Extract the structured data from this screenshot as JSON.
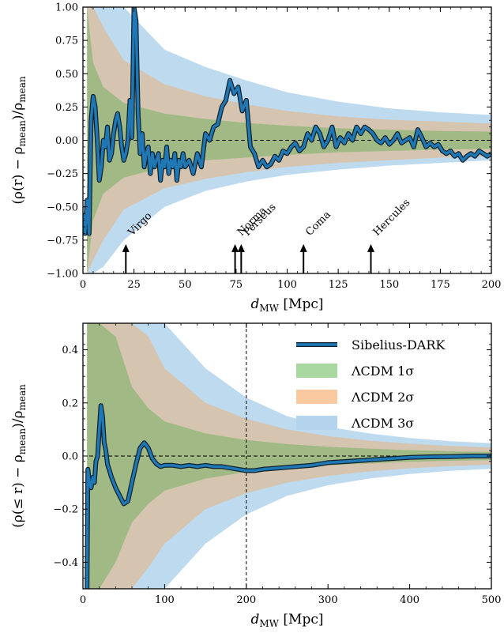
{
  "chart_data": [
    {
      "type": "area",
      "xlabel_main": "d",
      "xlabel_sub": "MW",
      "xlabel_unit": "[Mpc]",
      "ylabel": "(ρ(r) − ρmean)/ρmean",
      "ylabel_parts": [
        "(ρ(r) − ρ",
        "mean",
        ")/ρ",
        "mean"
      ],
      "xlim": [
        0,
        200
      ],
      "ylim": [
        -1.0,
        1.0
      ],
      "xticks": [
        0,
        25,
        50,
        75,
        100,
        125,
        150,
        175,
        200
      ],
      "xtick_labels": [
        "0",
        "25",
        "50",
        "75",
        "100",
        "125",
        "150",
        "175",
        "200"
      ],
      "yticks": [
        -1.0,
        -0.75,
        -0.5,
        -0.25,
        0.0,
        0.25,
        0.5,
        0.75,
        1.0
      ],
      "ytick_labels": [
        "−1.00",
        "−0.75",
        "−0.50",
        "−0.25",
        "0.00",
        "0.25",
        "0.50",
        "0.75",
        "1.00"
      ],
      "reference_line_y": 0,
      "bands_r": [
        2,
        5,
        10,
        20,
        40,
        60,
        80,
        100,
        125,
        150,
        175,
        200
      ],
      "band_1sigma": [
        1.0,
        0.58,
        0.4,
        0.28,
        0.2,
        0.16,
        0.13,
        0.11,
        0.09,
        0.08,
        0.07,
        0.065
      ],
      "band_2sigma": [
        1.0,
        1.0,
        0.85,
        0.6,
        0.42,
        0.33,
        0.27,
        0.22,
        0.18,
        0.155,
        0.14,
        0.125
      ],
      "band_3sigma": [
        1.0,
        1.0,
        1.0,
        1.0,
        0.68,
        0.55,
        0.45,
        0.36,
        0.29,
        0.24,
        0.21,
        0.19
      ],
      "band_lower_1sigma": [
        -1.0,
        -0.6,
        -0.4,
        -0.28,
        -0.2,
        -0.15,
        -0.13,
        -0.11,
        -0.09,
        -0.08,
        -0.07,
        -0.065
      ],
      "band_lower_2sigma": [
        -1.0,
        -0.9,
        -0.75,
        -0.52,
        -0.36,
        -0.29,
        -0.24,
        -0.2,
        -0.17,
        -0.15,
        -0.13,
        -0.12
      ],
      "band_lower_3sigma": [
        -1.0,
        -1.0,
        -0.95,
        -0.75,
        -0.5,
        -0.38,
        -0.31,
        -0.26,
        -0.22,
        -0.19,
        -0.17,
        -0.15
      ],
      "series": [
        {
          "name": "Sibelius-DARK",
          "color": "#1f77b4",
          "x": [
            0,
            1,
            2,
            3,
            4,
            5,
            6,
            7,
            8,
            9,
            10,
            11,
            12,
            13,
            14,
            15,
            16,
            17,
            18,
            19,
            20,
            21,
            22,
            23,
            24,
            25,
            26,
            27,
            28,
            29,
            30,
            31,
            32,
            33,
            34,
            35,
            36,
            37,
            38,
            39,
            40,
            41,
            42,
            43,
            44,
            45,
            46,
            47,
            48,
            49,
            50,
            52,
            54,
            56,
            58,
            60,
            62,
            64,
            66,
            68,
            70,
            72,
            74,
            76,
            78,
            80,
            82,
            84,
            86,
            88,
            90,
            92,
            94,
            96,
            98,
            100,
            102,
            104,
            106,
            108,
            110,
            112,
            114,
            116,
            118,
            120,
            122,
            124,
            126,
            128,
            130,
            132,
            134,
            136,
            138,
            140,
            142,
            144,
            146,
            148,
            150,
            152,
            154,
            156,
            158,
            160,
            162,
            164,
            166,
            168,
            170,
            172,
            174,
            176,
            178,
            180,
            182,
            184,
            186,
            188,
            190,
            192,
            194,
            196,
            198,
            200
          ],
          "y": [
            -0.55,
            -0.7,
            -0.45,
            -0.7,
            0.15,
            0.33,
            0.25,
            0.0,
            -0.3,
            -0.2,
            0.0,
            -0.05,
            0.1,
            -0.15,
            -0.1,
            0.05,
            0.15,
            0.2,
            0.1,
            -0.05,
            -0.15,
            -0.1,
            0.0,
            0.3,
            0.02,
            1.0,
            0.9,
            0.2,
            -0.1,
            0.05,
            -0.2,
            -0.1,
            -0.05,
            -0.25,
            -0.1,
            -0.2,
            -0.15,
            -0.1,
            -0.3,
            -0.15,
            -0.2,
            -0.05,
            -0.25,
            -0.15,
            -0.2,
            -0.1,
            -0.3,
            -0.15,
            -0.2,
            -0.1,
            -0.2,
            -0.15,
            -0.25,
            -0.1,
            -0.2,
            0.05,
            0.0,
            0.1,
            0.12,
            0.25,
            0.3,
            0.45,
            0.35,
            0.4,
            0.22,
            0.3,
            -0.05,
            -0.1,
            -0.2,
            -0.15,
            -0.2,
            -0.18,
            -0.12,
            -0.15,
            -0.08,
            -0.1,
            -0.05,
            -0.02,
            -0.08,
            -0.05,
            0.05,
            0.0,
            0.1,
            0.05,
            -0.05,
            0.0,
            0.1,
            -0.05,
            0.02,
            -0.02,
            0.05,
            0.0,
            0.1,
            0.05,
            0.1,
            0.08,
            0.05,
            0.0,
            -0.02,
            0.02,
            -0.03,
            0.0,
            0.05,
            -0.02,
            0.0,
            0.02,
            -0.05,
            0.08,
            0.02,
            -0.05,
            -0.02,
            -0.05,
            -0.03,
            -0.08,
            -0.1,
            -0.08,
            -0.12,
            -0.1,
            -0.15,
            -0.12,
            -0.1,
            -0.12,
            -0.08,
            -0.1,
            -0.12,
            -0.1
          ]
        }
      ],
      "annotations": [
        {
          "text": "Virgo",
          "x": 21
        },
        {
          "text": "Norma",
          "x": 74.5
        },
        {
          "text": "Perseus",
          "x": 77.5
        },
        {
          "text": "Coma",
          "x": 108
        },
        {
          "text": "Hercules",
          "x": 141
        }
      ]
    },
    {
      "type": "area",
      "xlabel_main": "d",
      "xlabel_sub": "MW",
      "xlabel_unit": "[Mpc]",
      "ylabel": "(ρ(≤ r) − ρmean)/ρmean",
      "ylabel_parts": [
        "(ρ(≤ r) − ρ",
        "mean",
        ")/ρ",
        "mean"
      ],
      "xlim": [
        0,
        500
      ],
      "ylim": [
        -0.5,
        0.5
      ],
      "xticks": [
        0,
        100,
        200,
        300,
        400,
        500
      ],
      "xtick_labels": [
        "0",
        "100",
        "200",
        "300",
        "400",
        "500"
      ],
      "yticks": [
        -0.4,
        -0.2,
        0.0,
        0.2,
        0.4
      ],
      "ytick_labels": [
        "−0.4",
        "−0.2",
        "0.0",
        "0.2",
        "0.4"
      ],
      "reference_line_y": 0,
      "reference_line_x": 200,
      "bands_r": [
        5,
        20,
        40,
        60,
        80,
        100,
        150,
        200,
        250,
        300,
        350,
        400,
        450,
        500
      ],
      "band_1sigma": [
        0.5,
        0.5,
        0.45,
        0.26,
        0.18,
        0.13,
        0.085,
        0.06,
        0.045,
        0.035,
        0.028,
        0.022,
        0.018,
        0.015
      ],
      "band_2sigma": [
        0.5,
        0.5,
        0.5,
        0.5,
        0.45,
        0.33,
        0.2,
        0.14,
        0.1,
        0.075,
        0.058,
        0.046,
        0.038,
        0.032
      ],
      "band_3sigma": [
        0.5,
        0.5,
        0.5,
        0.5,
        0.5,
        0.5,
        0.33,
        0.22,
        0.15,
        0.11,
        0.085,
        0.068,
        0.056,
        0.048
      ],
      "band_lower_1sigma": [
        -0.5,
        -0.5,
        -0.4,
        -0.25,
        -0.18,
        -0.13,
        -0.085,
        -0.06,
        -0.045,
        -0.035,
        -0.028,
        -0.022,
        -0.018,
        -0.015
      ],
      "band_lower_2sigma": [
        -0.5,
        -0.5,
        -0.5,
        -0.5,
        -0.42,
        -0.33,
        -0.2,
        -0.14,
        -0.1,
        -0.075,
        -0.058,
        -0.046,
        -0.038,
        -0.032
      ],
      "band_lower_3sigma": [
        -0.5,
        -0.5,
        -0.5,
        -0.5,
        -0.5,
        -0.5,
        -0.33,
        -0.22,
        -0.15,
        -0.11,
        -0.085,
        -0.068,
        -0.056,
        -0.048
      ],
      "series": [
        {
          "name": "Sibelius-DARK",
          "color": "#1f77b4",
          "x": [
            5,
            6,
            8,
            10,
            12,
            14,
            16,
            18,
            20,
            22,
            24,
            26,
            28,
            30,
            35,
            40,
            45,
            50,
            55,
            60,
            65,
            70,
            75,
            80,
            85,
            90,
            95,
            100,
            110,
            120,
            130,
            140,
            150,
            160,
            170,
            180,
            190,
            200,
            210,
            220,
            240,
            260,
            280,
            300,
            325,
            350,
            375,
            400,
            425,
            450,
            475,
            500
          ],
          "y": [
            -0.5,
            -0.05,
            -0.1,
            -0.12,
            -0.08,
            -0.1,
            -0.02,
            0.0,
            0.1,
            0.19,
            0.15,
            0.05,
            0.02,
            -0.03,
            -0.08,
            -0.12,
            -0.15,
            -0.18,
            -0.17,
            -0.1,
            -0.03,
            0.03,
            0.05,
            0.03,
            -0.01,
            -0.03,
            -0.04,
            -0.035,
            -0.035,
            -0.04,
            -0.035,
            -0.04,
            -0.035,
            -0.04,
            -0.04,
            -0.045,
            -0.05,
            -0.055,
            -0.055,
            -0.05,
            -0.045,
            -0.04,
            -0.035,
            -0.025,
            -0.02,
            -0.015,
            -0.01,
            -0.005,
            -0.003,
            -0.002,
            0.0,
            0.0
          ]
        }
      ],
      "legend": {
        "placement": "top-right",
        "entries": [
          {
            "label": "Sibelius-DARK",
            "color": "#1f77b4",
            "kind": "line"
          },
          {
            "label": "ΛCDM 1σ",
            "color": "#a8d8a0",
            "kind": "patch"
          },
          {
            "label": "ΛCDM 2σ",
            "color": "#f9c9a0",
            "kind": "patch"
          },
          {
            "label": "ΛCDM 3σ",
            "color": "#b3d4ec",
            "kind": "patch"
          }
        ]
      }
    }
  ],
  "colors": {
    "sigma3": "#b3d4ec",
    "sigma2": "#d9bfa3",
    "sigma1": "#98b97e",
    "line": "#1f77b4",
    "line_edge": "#10222e"
  }
}
